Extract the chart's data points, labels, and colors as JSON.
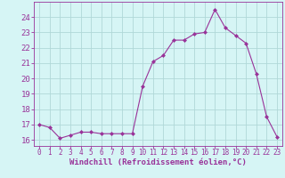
{
  "x": [
    0,
    1,
    2,
    3,
    4,
    5,
    6,
    7,
    8,
    9,
    10,
    11,
    12,
    13,
    14,
    15,
    16,
    17,
    18,
    19,
    20,
    21,
    22,
    23
  ],
  "y": [
    17.0,
    16.8,
    16.1,
    16.3,
    16.5,
    16.5,
    16.4,
    16.4,
    16.4,
    16.4,
    19.5,
    21.1,
    21.5,
    22.5,
    22.5,
    22.9,
    23.0,
    24.5,
    23.3,
    22.8,
    22.3,
    20.3,
    17.5,
    16.2
  ],
  "line_color": "#993399",
  "marker": "D",
  "marker_size": 2,
  "bg_color": "#d6f5f5",
  "grid_color": "#b0d8d8",
  "axis_color": "#993399",
  "tick_color": "#993399",
  "xlabel": "Windchill (Refroidissement éolien,°C)",
  "ylim": [
    15.6,
    25.0
  ],
  "xlim": [
    -0.5,
    23.5
  ],
  "yticks": [
    16,
    17,
    18,
    19,
    20,
    21,
    22,
    23,
    24
  ],
  "xticks": [
    0,
    1,
    2,
    3,
    4,
    5,
    6,
    7,
    8,
    9,
    10,
    11,
    12,
    13,
    14,
    15,
    16,
    17,
    18,
    19,
    20,
    21,
    22,
    23
  ],
  "xlabel_fontsize": 6.5,
  "ytick_fontsize": 6.5,
  "xtick_fontsize": 5.5
}
